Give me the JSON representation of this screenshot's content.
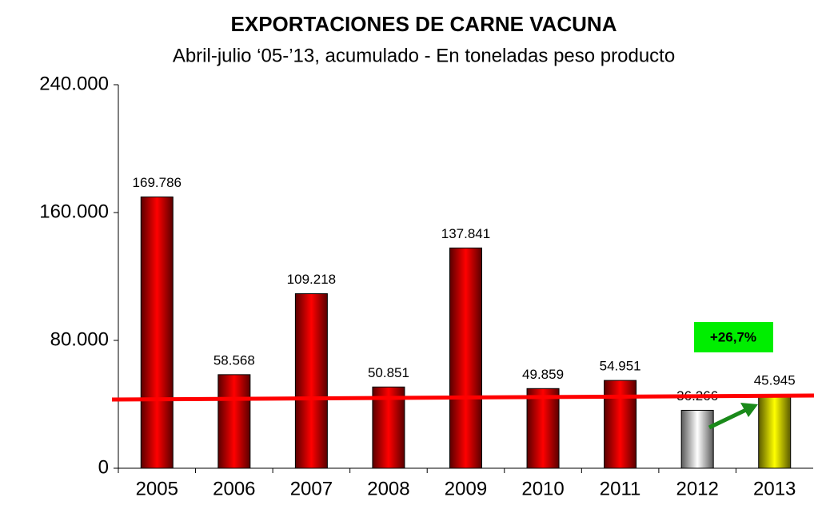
{
  "chart_data": {
    "type": "bar",
    "title": "EXPORTACIONES DE CARNE VACUNA",
    "subtitle": "Abril-julio ‘05-’13, acumulado - En toneladas peso producto",
    "categories": [
      "2005",
      "2006",
      "2007",
      "2008",
      "2009",
      "2010",
      "2011",
      "2012",
      "2013"
    ],
    "values": [
      169786,
      58568,
      109218,
      50851,
      137841,
      49859,
      54951,
      36266,
      45945
    ],
    "value_labels": [
      "169.786",
      "58.568",
      "109.218",
      "50.851",
      "137.841",
      "49.859",
      "54.951",
      "36.266",
      "45.945"
    ],
    "colors": [
      "#ff0000",
      "#ff0000",
      "#ff0000",
      "#ff0000",
      "#ff0000",
      "#ff0000",
      "#ff0000",
      "#ffffff",
      "#ffff00"
    ],
    "ylim": [
      0,
      240000
    ],
    "yticks": [
      0,
      {
        "value": 80000,
        "label": "80.000"
      },
      {
        "value": 160000,
        "label": "160.000"
      },
      {
        "value": 240000,
        "label": "240.000"
      }
    ],
    "grid": false,
    "annotation": "+26,7%"
  }
}
